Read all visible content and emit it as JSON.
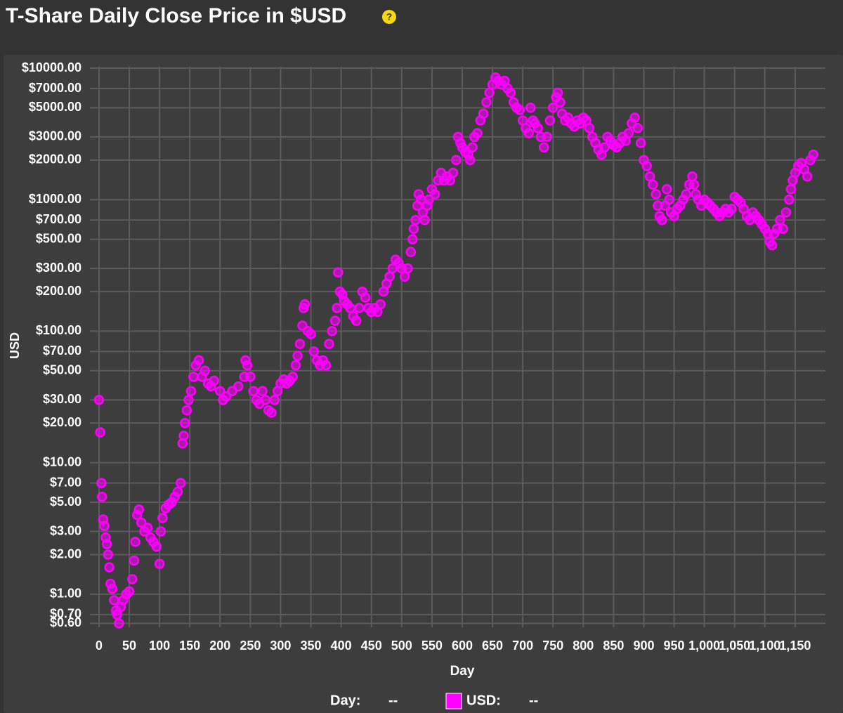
{
  "chart_data": {
    "type": "scatter",
    "title": "T-Share Daily Close Price in $USD",
    "help_icon": "?",
    "x_label": "Day",
    "y_label": "USD",
    "log_y": true,
    "grid": true,
    "legend": {
      "x_name": "Day:",
      "x_value": "--",
      "y_name": "USD:",
      "y_value": "--"
    },
    "xlim": [
      -15,
      1200
    ],
    "ylim": [
      0.56,
      10250
    ],
    "xticks": [
      0,
      50,
      100,
      150,
      200,
      250,
      300,
      350,
      400,
      450,
      500,
      550,
      600,
      650,
      700,
      750,
      800,
      850,
      900,
      950,
      {
        "value": 1000,
        "label": "1,000"
      },
      {
        "value": 1050,
        "label": "1,050"
      },
      {
        "value": 1100,
        "label": "1,100"
      },
      {
        "value": 1150,
        "label": "1,150"
      }
    ],
    "yticks": [
      {
        "value": 10000,
        "label": "$10000.00"
      },
      {
        "value": 7000,
        "label": "$7000.00"
      },
      {
        "value": 5000,
        "label": "$5000.00"
      },
      {
        "value": 3000,
        "label": "$3000.00"
      },
      {
        "value": 2000,
        "label": "$2000.00"
      },
      {
        "value": 1000,
        "label": "$1000.00"
      },
      {
        "value": 700,
        "label": "$700.00"
      },
      {
        "value": 500,
        "label": "$500.00"
      },
      {
        "value": 300,
        "label": "$300.00"
      },
      {
        "value": 200,
        "label": "$200.00"
      },
      {
        "value": 100,
        "label": "$100.00"
      },
      {
        "value": 70,
        "label": "$70.00"
      },
      {
        "value": 50,
        "label": "$50.00"
      },
      {
        "value": 30,
        "label": "$30.00"
      },
      {
        "value": 20,
        "label": "$20.00"
      },
      {
        "value": 10,
        "label": "$10.00"
      },
      {
        "value": 7,
        "label": "$7.00"
      },
      {
        "value": 5,
        "label": "$5.00"
      },
      {
        "value": 3,
        "label": "$3.00"
      },
      {
        "value": 2,
        "label": "$2.00"
      },
      {
        "value": 1,
        "label": "$1.00"
      },
      {
        "value": 0.7,
        "label": "$0.70"
      },
      {
        "value": 0.6,
        "label": "$0.60"
      }
    ],
    "series": [
      {
        "name": "USD",
        "color": "#ff00ff",
        "x": [
          0,
          2,
          4,
          5,
          7,
          9,
          11,
          13,
          15,
          17,
          19,
          22,
          25,
          28,
          30,
          33,
          36,
          40,
          45,
          50,
          55,
          58,
          60,
          63,
          66,
          70,
          75,
          80,
          85,
          90,
          95,
          100,
          102,
          105,
          110,
          115,
          120,
          125,
          130,
          135,
          138,
          140,
          142,
          145,
          148,
          152,
          156,
          160,
          165,
          170,
          175,
          180,
          185,
          190,
          200,
          205,
          210,
          220,
          230,
          240,
          242,
          245,
          250,
          255,
          260,
          265,
          270,
          275,
          280,
          285,
          290,
          295,
          300,
          305,
          310,
          315,
          320,
          325,
          328,
          332,
          336,
          338,
          340,
          345,
          350,
          355,
          360,
          365,
          370,
          375,
          380,
          385,
          390,
          393,
          395,
          398,
          402,
          405,
          410,
          415,
          420,
          425,
          430,
          435,
          440,
          445,
          450,
          455,
          460,
          465,
          470,
          475,
          480,
          485,
          490,
          495,
          500,
          505,
          510,
          515,
          518,
          520,
          523,
          526,
          528,
          532,
          535,
          538,
          542,
          545,
          550,
          555,
          560,
          565,
          570,
          575,
          580,
          585,
          590,
          593,
          597,
          600,
          605,
          610,
          613,
          617,
          620,
          625,
          630,
          635,
          640,
          645,
          650,
          655,
          660,
          665,
          670,
          675,
          680,
          685,
          690,
          695,
          700,
          705,
          710,
          713,
          717,
          720,
          725,
          730,
          735,
          740,
          745,
          750,
          755,
          758,
          762,
          765,
          770,
          775,
          780,
          785,
          790,
          795,
          800,
          805,
          810,
          815,
          820,
          825,
          830,
          835,
          840,
          845,
          850,
          855,
          860,
          865,
          870,
          875,
          880,
          885,
          890,
          895,
          900,
          905,
          910,
          915,
          920,
          923,
          926,
          930,
          935,
          938,
          942,
          945,
          950,
          955,
          960,
          965,
          970,
          975,
          980,
          983,
          986,
          990,
          995,
          1000,
          1005,
          1010,
          1015,
          1020,
          1025,
          1030,
          1035,
          1040,
          1045,
          1050,
          1055,
          1060,
          1065,
          1070,
          1075,
          1080,
          1085,
          1090,
          1095,
          1100,
          1105,
          1108,
          1112,
          1115,
          1120,
          1125,
          1130,
          1135,
          1140,
          1143,
          1146,
          1150,
          1155,
          1160,
          1165,
          1170,
          1175,
          1180
        ],
        "values": [
          30,
          17,
          7,
          5.5,
          3.7,
          3.3,
          2.7,
          2.4,
          2,
          1.6,
          1.2,
          1.1,
          0.9,
          0.75,
          0.7,
          0.6,
          0.8,
          0.9,
          1.0,
          1.05,
          1.3,
          1.8,
          2.5,
          4,
          4.4,
          3.5,
          3,
          3.2,
          2.7,
          2.5,
          2.3,
          1.7,
          3,
          3.8,
          4.5,
          4.8,
          5,
          5.5,
          6,
          7,
          14,
          16,
          20,
          25,
          30,
          35,
          45,
          55,
          60,
          45,
          50,
          40,
          38,
          42,
          35,
          30,
          32,
          35,
          38,
          45,
          60,
          55,
          45,
          35,
          30,
          28,
          35,
          30,
          25,
          24,
          30,
          35,
          40,
          43,
          40,
          42,
          45,
          55,
          65,
          80,
          110,
          150,
          160,
          100,
          95,
          70,
          60,
          55,
          60,
          55,
          80,
          100,
          120,
          150,
          280,
          200,
          190,
          170,
          160,
          150,
          130,
          120,
          150,
          200,
          180,
          150,
          140,
          150,
          140,
          160,
          200,
          230,
          260,
          300,
          350,
          330,
          300,
          260,
          300,
          400,
          500,
          600,
          700,
          900,
          1100,
          1000,
          800,
          700,
          900,
          1000,
          1200,
          1100,
          1400,
          1600,
          1400,
          1500,
          1400,
          1600,
          2000,
          3000,
          2700,
          2500,
          2300,
          2200,
          2000,
          2500,
          3000,
          3200,
          4000,
          4500,
          5500,
          6500,
          7500,
          8500,
          8000,
          7500,
          8000,
          7000,
          6500,
          5500,
          5000,
          4800,
          4000,
          3500,
          3200,
          5000,
          4000,
          3800,
          3500,
          3000,
          2500,
          3000,
          4000,
          5000,
          6000,
          6500,
          5500,
          4500,
          4000,
          4200,
          3800,
          3600,
          4000,
          3800,
          4200,
          4000,
          3500,
          3000,
          2700,
          2400,
          2200,
          2500,
          3000,
          2800,
          2600,
          2500,
          2700,
          3000,
          2800,
          3200,
          3800,
          4200,
          3500,
          2700,
          2000,
          1800,
          1500,
          1300,
          1100,
          900,
          750,
          700,
          900,
          1200,
          1000,
          800,
          750,
          850,
          900,
          1000,
          1100,
          1300,
          1500,
          1300,
          1100,
          1000,
          900,
          1000,
          950,
          900,
          850,
          800,
          750,
          800,
          850,
          800,
          850,
          1050,
          1000,
          950,
          850,
          750,
          700,
          800,
          750,
          700,
          650,
          600,
          550,
          480,
          450,
          550,
          600,
          700,
          600,
          800,
          1000,
          1200,
          1400,
          1600,
          1800,
          1900,
          1700,
          1500,
          2000,
          2200
        ]
      }
    ]
  }
}
